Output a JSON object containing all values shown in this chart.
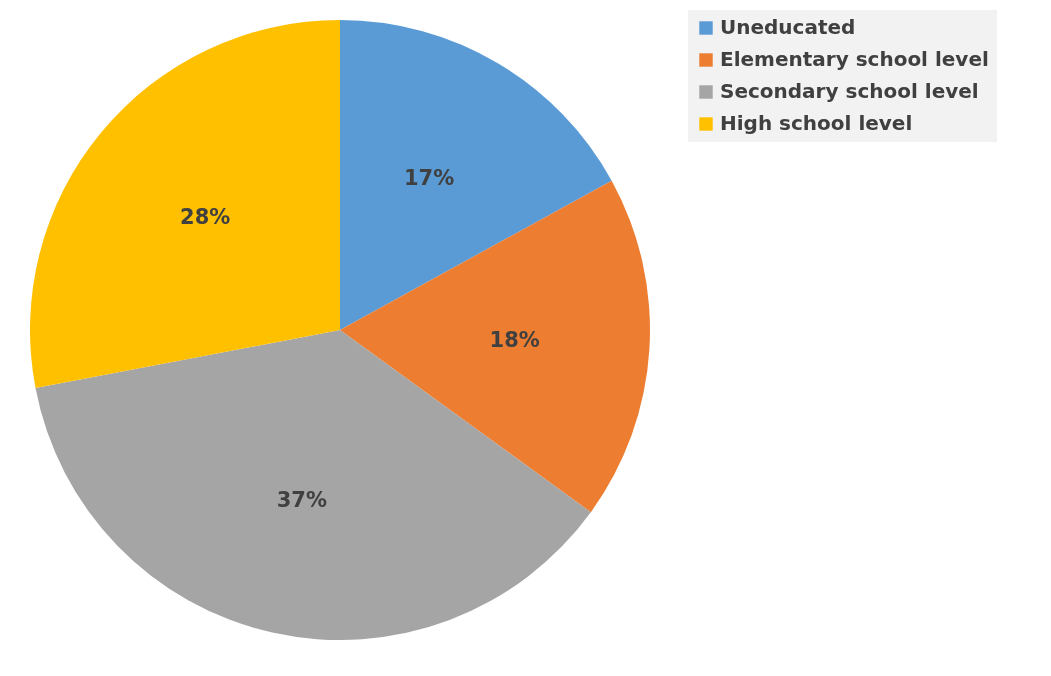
{
  "chart_data": {
    "type": "pie",
    "categories": [
      "Uneducated",
      "Elementary school level",
      "Secondary school level",
      "High school level"
    ],
    "values": [
      17,
      18,
      37,
      28
    ],
    "colors": [
      "#5b9bd5",
      "#ed7d31",
      "#a5a5a5",
      "#ffc000"
    ],
    "value_labels": [
      "17%",
      "18%",
      "37%",
      "28%"
    ],
    "legend": "right"
  }
}
